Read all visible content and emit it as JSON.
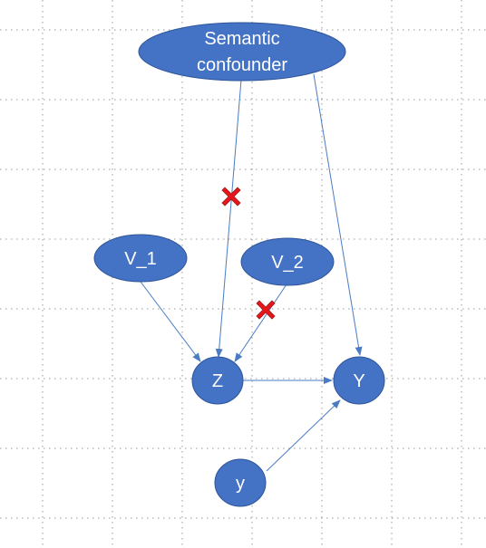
{
  "diagram": {
    "colors": {
      "node_fill": "#4472C4",
      "node_stroke": "#2F5597",
      "edge": "#4A7CC4",
      "blocked_marker": "#E8151B",
      "grid": "#9A9A9A"
    },
    "nodes": {
      "confounder": {
        "label_line1": "Semantic",
        "label_line2": "confounder"
      },
      "v1": {
        "label": "V_1"
      },
      "v2": {
        "label": "V_2"
      },
      "z": {
        "label": "Z"
      },
      "y_upper": {
        "label": "Y"
      },
      "y_lower": {
        "label": "y"
      }
    },
    "edges": [
      {
        "from": "confounder",
        "to": "z",
        "blocked": true
      },
      {
        "from": "confounder",
        "to": "y_upper",
        "blocked": false
      },
      {
        "from": "v1",
        "to": "z",
        "blocked": false
      },
      {
        "from": "v2",
        "to": "z",
        "blocked": true
      },
      {
        "from": "z",
        "to": "y_upper",
        "blocked": false
      },
      {
        "from": "y_lower",
        "to": "y_upper",
        "blocked": false
      }
    ],
    "blocked_marker_icon": "red-x-icon"
  }
}
